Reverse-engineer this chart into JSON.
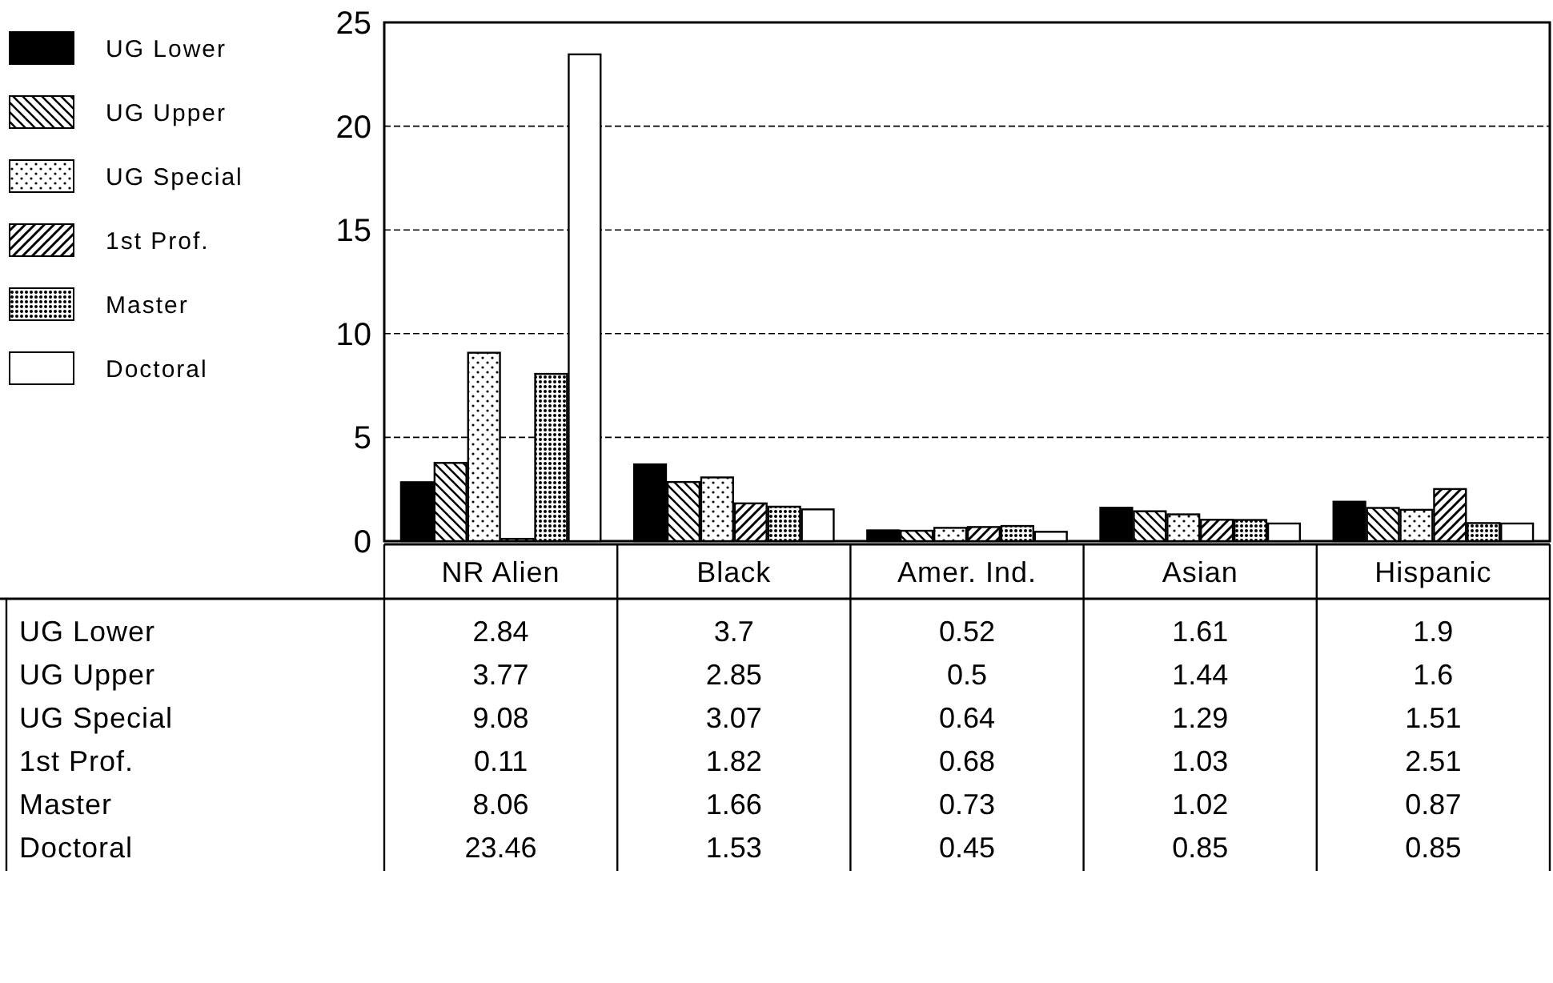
{
  "chart_data": {
    "type": "bar",
    "categories": [
      "NR Alien",
      "Black",
      "Amer. Ind.",
      "Asian",
      "Hispanic"
    ],
    "series": [
      {
        "name": "UG Lower",
        "color": "#000000",
        "values": [
          2.84,
          3.7,
          0.52,
          1.61,
          1.9
        ]
      },
      {
        "name": "UG Upper",
        "color": "#000000",
        "values": [
          3.77,
          2.85,
          0.5,
          1.44,
          1.6
        ]
      },
      {
        "name": "UG Special",
        "color": "#000000",
        "values": [
          9.08,
          3.07,
          0.64,
          1.29,
          1.51
        ]
      },
      {
        "name": "1st Prof.",
        "color": "#000000",
        "values": [
          0.11,
          1.82,
          0.68,
          1.03,
          2.51
        ]
      },
      {
        "name": "Master",
        "color": "#000000",
        "values": [
          8.06,
          1.66,
          0.73,
          1.02,
          0.87
        ]
      },
      {
        "name": "Doctoral",
        "color": "#000000",
        "values": [
          23.46,
          1.53,
          0.45,
          0.85,
          0.85
        ]
      }
    ],
    "ylim": [
      0,
      25
    ],
    "yticks": [
      0,
      5,
      10,
      15,
      20,
      25
    ],
    "grid": "y",
    "legend": "left",
    "data_labels": true
  }
}
